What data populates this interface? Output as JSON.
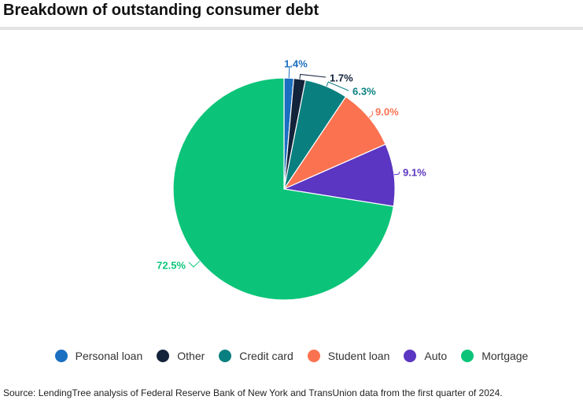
{
  "title": "Breakdown of outstanding consumer debt",
  "source": "Source: LendingTree analysis of Federal Reserve Bank of New York and TransUnion data from the first quarter of 2024.",
  "chart_data": {
    "type": "pie",
    "legend_position": "bottom",
    "slices": [
      {
        "name": "Personal loan",
        "value": 1.4,
        "label": "1.4%",
        "color": "#1a6fc0"
      },
      {
        "name": "Other",
        "value": 1.7,
        "label": "1.7%",
        "color": "#13233a"
      },
      {
        "name": "Credit card",
        "value": 6.3,
        "label": "6.3%",
        "color": "#0a7f7f"
      },
      {
        "name": "Student loan",
        "value": 9.0,
        "label": "9.0%",
        "color": "#fb7250"
      },
      {
        "name": "Auto",
        "value": 9.1,
        "label": "9.1%",
        "color": "#5a36c2"
      },
      {
        "name": "Mortgage",
        "value": 72.5,
        "label": "72.5%",
        "color": "#0cc479"
      }
    ]
  }
}
